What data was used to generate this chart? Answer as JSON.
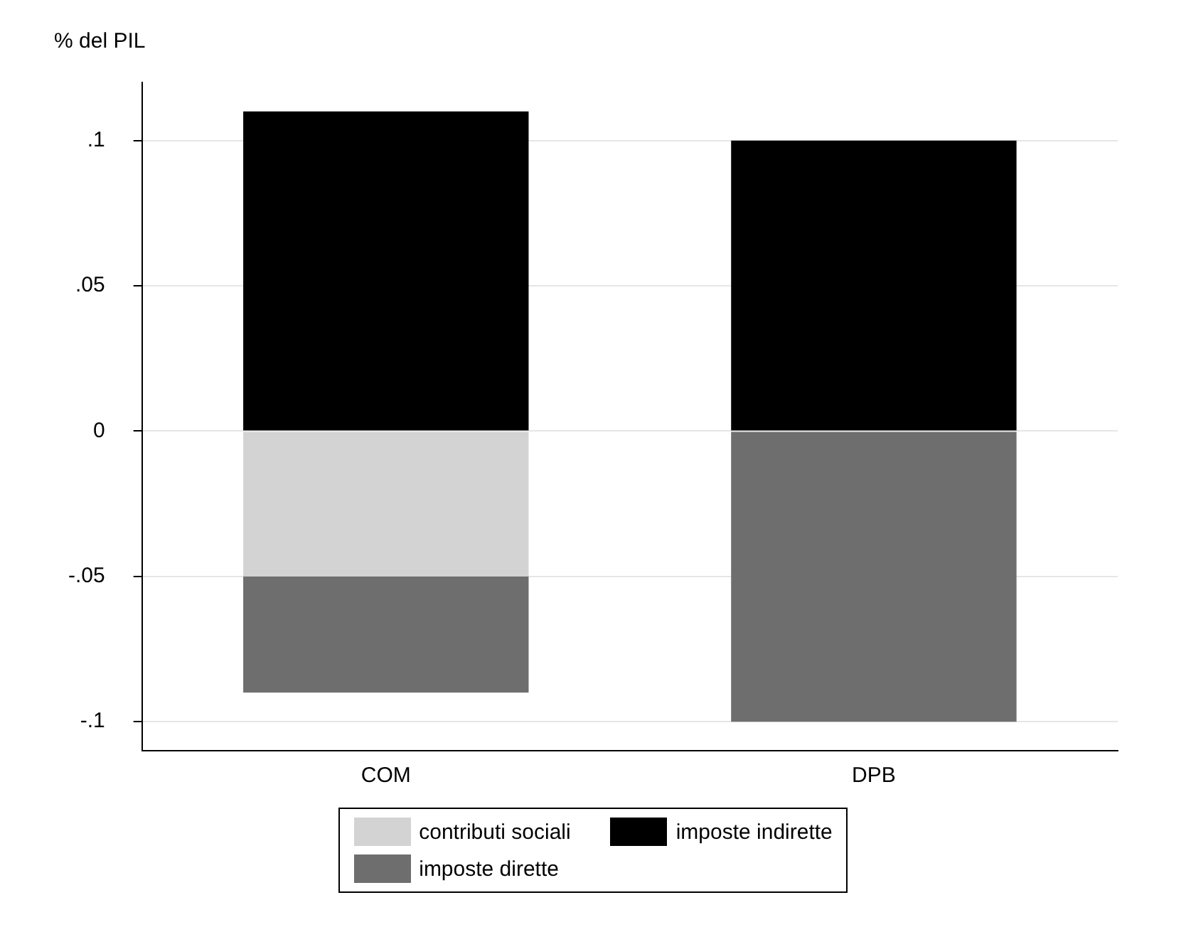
{
  "chart_data": {
    "type": "bar",
    "ylabel": "% del PIL",
    "categories": [
      "COM",
      "DPB"
    ],
    "stacked": true,
    "series": [
      {
        "name": "contributi sociali",
        "color": "#d3d3d3",
        "values": [
          -0.05,
          null
        ]
      },
      {
        "name": "imposte dirette",
        "color": "#6e6e6e",
        "values": [
          -0.04,
          -0.1
        ]
      },
      {
        "name": "imposte indirette",
        "color": "#000000",
        "values": [
          0.11,
          0.1
        ]
      }
    ],
    "ylim": [
      -0.11,
      0.12
    ],
    "yticks": [
      {
        "value": -0.1,
        "label": "-.1"
      },
      {
        "value": -0.05,
        "label": "-.05"
      },
      0,
      {
        "value": 0.05,
        "label": ".05"
      },
      {
        "value": 0.1,
        "label": ".1"
      }
    ],
    "grid": "y",
    "legend": "bottom"
  }
}
